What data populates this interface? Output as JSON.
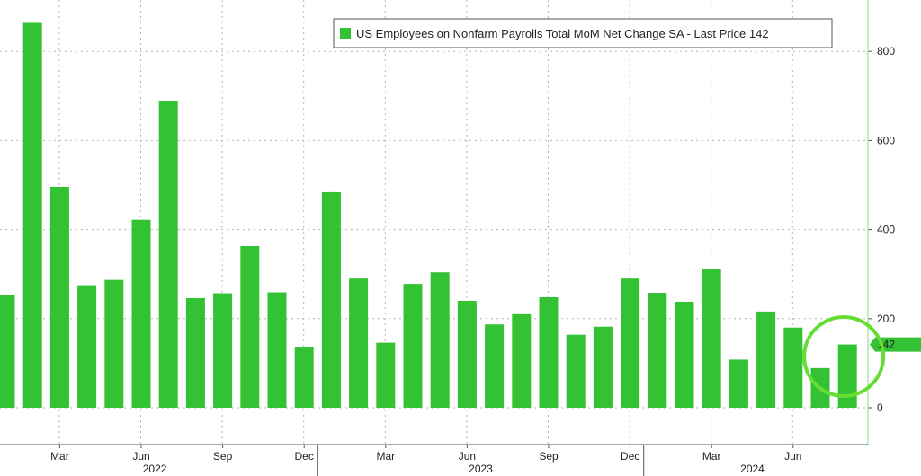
{
  "chart_data": {
    "type": "bar",
    "legend": "US Employees on Nonfarm Payrolls Total MoM Net Change SA - Last Price 142",
    "legend_position": "top-right",
    "grid": true,
    "y_axis_side": "right",
    "ylim": [
      -60,
      920
    ],
    "yticks": [
      0,
      200,
      400,
      600,
      800
    ],
    "ytick_labels": [
      "0",
      "200",
      "400",
      "600",
      "800"
    ],
    "last_value": 142,
    "last_value_label": "142",
    "colors": {
      "bar": "#33c233",
      "accent": "#66dd33",
      "grid": "#b5b5b5",
      "axis": "#7ee07e"
    },
    "categories": [
      "2022-01",
      "2022-02",
      "2022-03",
      "2022-04",
      "2022-05",
      "2022-06",
      "2022-07",
      "2022-08",
      "2022-09",
      "2022-10",
      "2022-11",
      "2022-12",
      "2023-01",
      "2023-02",
      "2023-03",
      "2023-04",
      "2023-05",
      "2023-06",
      "2023-07",
      "2023-08",
      "2023-09",
      "2023-10",
      "2023-11",
      "2023-12",
      "2024-01",
      "2024-02",
      "2024-03",
      "2024-04",
      "2024-05",
      "2024-06",
      "2024-07",
      "2024-08"
    ],
    "values": [
      252,
      864,
      496,
      275,
      287,
      422,
      688,
      246,
      257,
      363,
      259,
      137,
      484,
      290,
      146,
      278,
      304,
      240,
      187,
      210,
      248,
      164,
      182,
      290,
      258,
      238,
      312,
      108,
      216,
      180,
      89,
      142
    ],
    "month_ticks": [
      {
        "label": "Mar",
        "index": 2
      },
      {
        "label": "Jun",
        "index": 5
      },
      {
        "label": "Sep",
        "index": 8
      },
      {
        "label": "Dec",
        "index": 11
      },
      {
        "label": "Mar",
        "index": 14
      },
      {
        "label": "Jun",
        "index": 17
      },
      {
        "label": "Sep",
        "index": 20
      },
      {
        "label": "Dec",
        "index": 23
      },
      {
        "label": "Mar",
        "index": 26
      },
      {
        "label": "Jun",
        "index": 29
      }
    ],
    "year_labels": [
      {
        "label": "2022",
        "center_index": 5.5
      },
      {
        "label": "2023",
        "center_index": 17.5
      },
      {
        "label": "2024",
        "center_index": 27.5
      }
    ],
    "year_separators": [
      11.5,
      23.5
    ],
    "annotation": "circle around last two bars"
  }
}
